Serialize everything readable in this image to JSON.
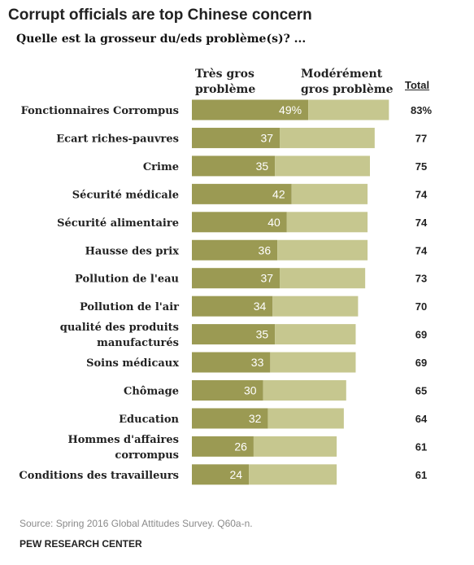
{
  "chart_data": {
    "type": "bar",
    "stacked": true,
    "orientation": "horizontal",
    "title": "Corrupt officials are top Chinese concern",
    "subtitle": "Quelle est la grosseur du/eds problème(s)? ...",
    "column_headers": {
      "series1": [
        "Très gros",
        "problème"
      ],
      "series2": [
        "Modérément",
        "gros problème"
      ],
      "total": "Total"
    },
    "categories": [
      [
        "Fonctionnaires Corrompus"
      ],
      [
        "Ecart riches-pauvres"
      ],
      [
        "Crime"
      ],
      [
        "Sécurité médicale"
      ],
      [
        "Sécurité alimentaire"
      ],
      [
        "Hausse des prix"
      ],
      [
        "Pollution de l'eau"
      ],
      [
        "Pollution de l'air"
      ],
      [
        "qualité des produits",
        "manufacturés"
      ],
      [
        "Soins médicaux"
      ],
      [
        "Chômage"
      ],
      [
        "Education"
      ],
      [
        "Hommes d'affaires",
        "corrompus"
      ],
      [
        "Conditions des travailleurs"
      ]
    ],
    "series": [
      {
        "name": "Très gros problème",
        "values": [
          49,
          37,
          35,
          42,
          40,
          36,
          37,
          34,
          35,
          33,
          30,
          32,
          26,
          24
        ],
        "color": "#9b9a53"
      },
      {
        "name": "Modérément gros problème",
        "values": [
          34,
          40,
          40,
          32,
          34,
          38,
          36,
          36,
          34,
          36,
          35,
          32,
          35,
          37
        ],
        "color": "#c6c78f"
      }
    ],
    "value_labels": [
      "49%",
      "37",
      "35",
      "42",
      "40",
      "36",
      "37",
      "34",
      "35",
      "33",
      "30",
      "32",
      "26",
      "24"
    ],
    "totals": [
      "83%",
      "77",
      "75",
      "74",
      "74",
      "74",
      "73",
      "70",
      "69",
      "69",
      "65",
      "64",
      "61",
      "61"
    ],
    "xlim": [
      0,
      100
    ]
  },
  "footer": {
    "source": "Source: Spring 2016 Global Attitudes Survey. Q60a-n.",
    "org": "PEW RESEARCH CENTER"
  }
}
